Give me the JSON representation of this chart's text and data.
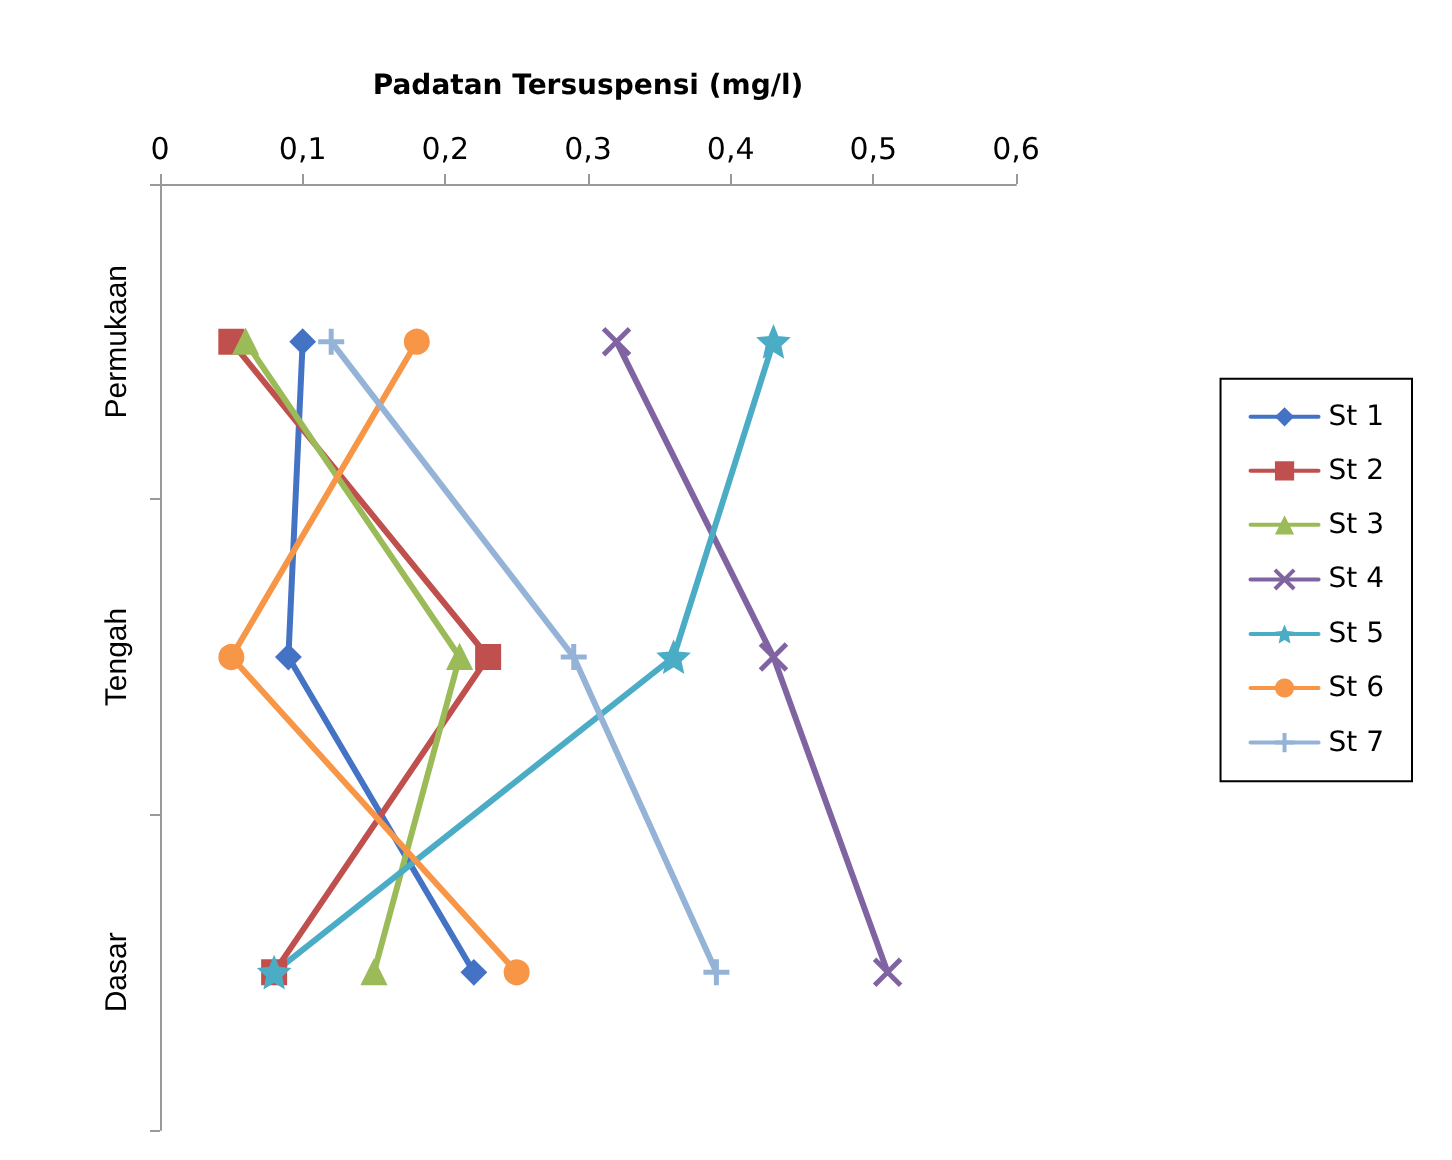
{
  "chart_data": {
    "type": "line",
    "xlabel": "Padatan Tersuspensi (mg/l)",
    "categories": [
      "Permukaan",
      "Tengah",
      "Dasar"
    ],
    "xlim": [
      0,
      0.6
    ],
    "xticks": [
      {
        "value": 0,
        "label": "0"
      },
      {
        "value": 0.1,
        "label": "0,1"
      },
      {
        "value": 0.2,
        "label": "0,2"
      },
      {
        "value": 0.3,
        "label": "0,3"
      },
      {
        "value": 0.4,
        "label": "0,4"
      },
      {
        "value": 0.5,
        "label": "0,5"
      },
      {
        "value": 0.6,
        "label": "0,6"
      }
    ],
    "grid": false,
    "legend": "right",
    "orientation": "horizontal",
    "series": [
      {
        "name": "St 1",
        "color": "#4472c4",
        "marker": "diamond",
        "values": [
          0.1,
          0.09,
          0.22
        ]
      },
      {
        "name": "St 2",
        "color": "#c0504d",
        "marker": "square",
        "values": [
          0.05,
          0.23,
          0.08
        ]
      },
      {
        "name": "St 3",
        "color": "#9bbb59",
        "marker": "triangle",
        "values": [
          0.06,
          0.21,
          0.15
        ]
      },
      {
        "name": "St 4",
        "color": "#8064a2",
        "marker": "cross",
        "values": [
          0.32,
          0.43,
          0.51
        ]
      },
      {
        "name": "St 5",
        "color": "#4bacc6",
        "marker": "star",
        "values": [
          0.43,
          0.36,
          0.08
        ]
      },
      {
        "name": "St 6",
        "color": "#f79646",
        "marker": "circle",
        "values": [
          0.18,
          0.05,
          0.25
        ]
      },
      {
        "name": "St 7",
        "color": "#95b3d7",
        "marker": "plus",
        "values": [
          0.12,
          0.29,
          0.39
        ]
      }
    ]
  }
}
